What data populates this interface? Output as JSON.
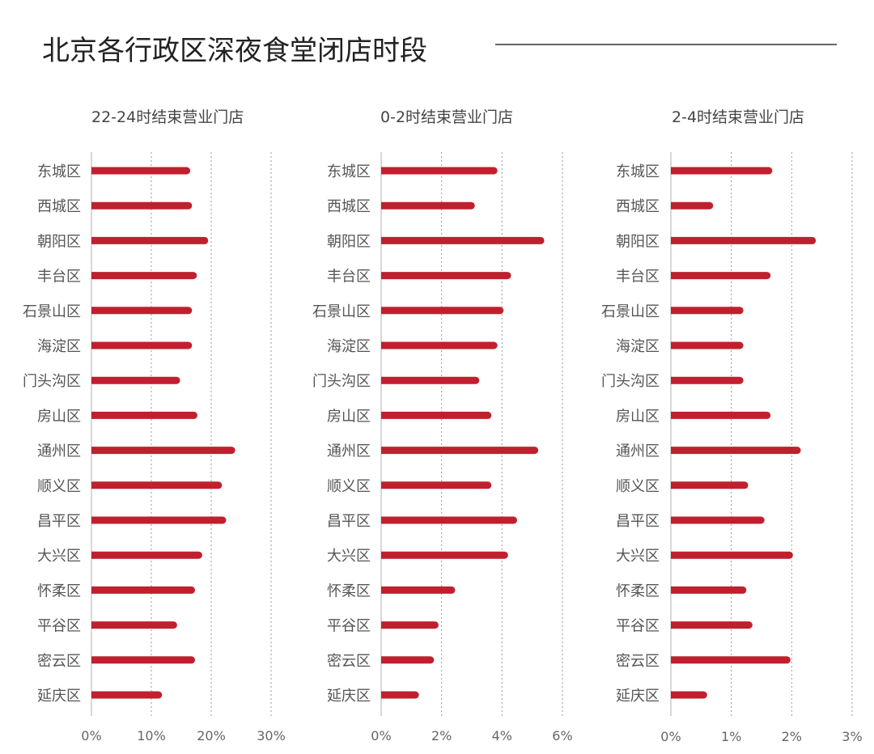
{
  "title": "北京各行政区深夜食堂闭店时段",
  "colors": {
    "bar": "#c0202e",
    "title_text": "#222222",
    "label_text": "#555555",
    "tick_text": "#666666",
    "axis_line": "#cccccc",
    "grid_line": "#999999",
    "title_rule": "#333333"
  },
  "chart_data": [
    {
      "type": "bar",
      "orientation": "horizontal",
      "title": "22-24时结束营业门店",
      "categories": [
        "东城区",
        "西城区",
        "朝阳区",
        "丰台区",
        "石景山区",
        "海淀区",
        "门头沟区",
        "房山区",
        "通州区",
        "顺义区",
        "昌平区",
        "大兴区",
        "怀柔区",
        "平谷区",
        "密云区",
        "延庆区"
      ],
      "values": [
        16.5,
        16.8,
        19.5,
        17.6,
        16.8,
        16.8,
        14.8,
        17.7,
        24.0,
        21.8,
        22.5,
        18.5,
        17.3,
        14.3,
        17.3,
        11.8
      ],
      "unit": "%",
      "xlim": [
        0,
        30
      ],
      "ticks": [
        0,
        10,
        20,
        30
      ],
      "tick_labels": [
        "0%",
        "10%",
        "20%",
        "30%"
      ],
      "grid": true
    },
    {
      "type": "bar",
      "orientation": "horizontal",
      "title": "0-2时结束营业门店",
      "categories": [
        "东城区",
        "西城区",
        "朝阳区",
        "丰台区",
        "石景山区",
        "海淀区",
        "门头沟区",
        "房山区",
        "通州区",
        "顺义区",
        "昌平区",
        "大兴区",
        "怀柔区",
        "平谷区",
        "密云区",
        "延庆区"
      ],
      "values": [
        3.85,
        3.1,
        5.4,
        4.3,
        4.05,
        3.85,
        3.25,
        3.65,
        5.2,
        3.65,
        4.5,
        4.2,
        2.45,
        1.9,
        1.75,
        1.25
      ],
      "unit": "%",
      "xlim": [
        0,
        6
      ],
      "ticks": [
        0,
        2,
        4,
        6
      ],
      "tick_labels": [
        "0%",
        "2%",
        "4%",
        "6%"
      ],
      "grid": true
    },
    {
      "type": "bar",
      "orientation": "horizontal",
      "title": "2-4时结束营业门店",
      "categories": [
        "东城区",
        "西城区",
        "朝阳区",
        "丰台区",
        "石景山区",
        "海淀区",
        "门头沟区",
        "房山区",
        "通州区",
        "顺义区",
        "昌平区",
        "大兴区",
        "怀柔区",
        "平谷区",
        "密云区",
        "延庆区"
      ],
      "values": [
        1.68,
        0.7,
        2.4,
        1.65,
        1.2,
        1.2,
        1.2,
        1.65,
        2.15,
        1.28,
        1.55,
        2.02,
        1.25,
        1.35,
        1.98,
        0.6
      ],
      "unit": "%",
      "xlim": [
        0,
        3
      ],
      "ticks": [
        0,
        1,
        2,
        3
      ],
      "tick_labels": [
        "0%",
        "1%",
        "2%",
        "3%"
      ],
      "grid": true
    }
  ]
}
